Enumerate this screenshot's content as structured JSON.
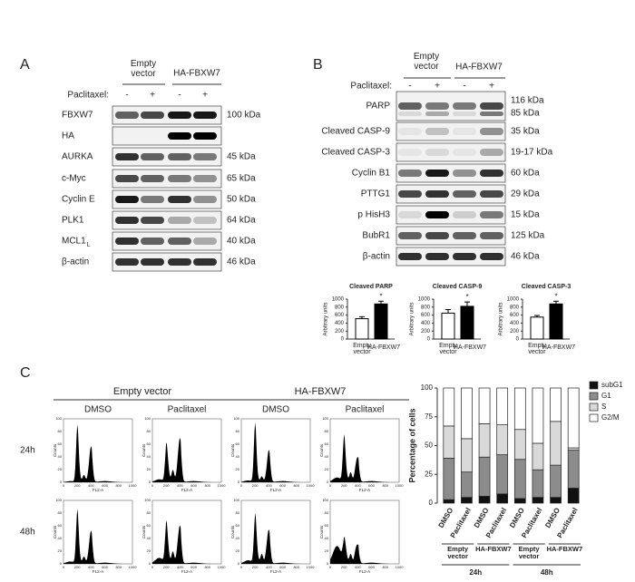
{
  "panel_a": {
    "label": "A",
    "groups": [
      "Empty vector",
      "HA-FBXW7"
    ],
    "treatment": "Paclitaxel:",
    "signs": [
      "-",
      "+",
      "-",
      "+"
    ],
    "rows": [
      {
        "protein": "FBXW7",
        "size": "100 kDa"
      },
      {
        "protein": "HA"
      },
      {
        "protein": "AURKA",
        "size": "45 kDa"
      },
      {
        "protein": "c-Myc",
        "size": "65 kDa"
      },
      {
        "protein": "Cyclin E",
        "size": "50 kDa"
      },
      {
        "protein": "PLK1",
        "size": "64 kDa"
      },
      {
        "protein": "MCL1",
        "subscript": "L",
        "size": "40 kDa"
      },
      {
        "protein": "β-actin",
        "size": "46 kDa"
      }
    ]
  },
  "panel_b": {
    "label": "B",
    "groups": [
      "Empty vector",
      "HA-FBXW7"
    ],
    "treatment": "Paclitaxel:",
    "signs": [
      "-",
      "+",
      "-",
      "+"
    ],
    "rows": [
      {
        "protein": "PARP",
        "size": "116 kDa",
        "size2": "85 kDa"
      },
      {
        "protein": "Cleaved CASP-9",
        "size": "35 kDa"
      },
      {
        "protein": "Cleaved CASP-3",
        "size": "19-17 kDa"
      },
      {
        "protein": "Cyclin B1",
        "size": "60 kDa"
      },
      {
        "protein": "PTTG1",
        "size": "29 kDa"
      },
      {
        "protein": "p HisH3",
        "size": "15 kDa"
      },
      {
        "protein": "BubR1",
        "size": "125 kDa"
      },
      {
        "protein": "β-actin",
        "size": "46 kDa"
      }
    ]
  },
  "panel_c": {
    "label": "C",
    "groups": [
      "Empty vector",
      "HA-FBXW7"
    ],
    "treatments": [
      "DMSO",
      "Paclitaxel"
    ],
    "periods": [
      "24h",
      "48h"
    ],
    "hist_x_label": "FL2-A",
    "hist_y_label": "Counts",
    "hist_xticks": [
      0,
      200,
      400,
      600,
      800,
      1000
    ],
    "hist_yticks": [
      0,
      20,
      40,
      60,
      80,
      100
    ]
  },
  "chart_data": [
    {
      "type": "bar",
      "title": "Cleaved PARP",
      "y_label": "Arbitrary units",
      "categories": [
        "Empty vector",
        "HA-FBXW7"
      ],
      "values": [
        510,
        880
      ],
      "errors": [
        50,
        70
      ],
      "colors": [
        "#ffffff",
        "#000000"
      ],
      "ylim": [
        0,
        1000
      ],
      "yticks": [
        0,
        200,
        400,
        600,
        800,
        1000
      ],
      "significance": "*"
    },
    {
      "type": "bar",
      "title": "Cleaved CASP-9",
      "y_label": "Arbitrary units",
      "categories": [
        "Empty vector",
        "HA-FBXW7"
      ],
      "values": [
        650,
        820
      ],
      "errors": [
        90,
        110
      ],
      "colors": [
        "#ffffff",
        "#000000"
      ],
      "ylim": [
        0,
        1000
      ],
      "yticks": [
        0,
        200,
        400,
        600,
        800,
        1000
      ],
      "significance": "*"
    },
    {
      "type": "bar",
      "title": "Cleaved CASP-3",
      "y_label": "Arbitrary units",
      "categories": [
        "Empty vector",
        "HA-FBXW7"
      ],
      "values": [
        550,
        880
      ],
      "errors": [
        40,
        70
      ],
      "colors": [
        "#ffffff",
        "#000000"
      ],
      "ylim": [
        0,
        1000
      ],
      "yticks": [
        0,
        200,
        400,
        600,
        800,
        1000
      ],
      "significance": "*"
    },
    {
      "type": "stacked_bar",
      "y_label": "Percentage of cells",
      "categories": [
        "DMSO",
        "Paclitaxel",
        "DMSO",
        "Paclitaxel",
        "DMSO",
        "Paclitaxel",
        "DMSO",
        "Paclitaxel"
      ],
      "groups": [
        "Empty vector",
        "HA-FBXW7",
        "Empty vector",
        "HA-FBXW7"
      ],
      "periods": [
        "24h",
        "48h"
      ],
      "series": [
        {
          "name": "subG1",
          "color": "#111111",
          "values": [
            3,
            5,
            6,
            8,
            4,
            5,
            5,
            13
          ]
        },
        {
          "name": "G1",
          "color": "#8c8c8c",
          "values": [
            36,
            22,
            34,
            34,
            34,
            24,
            28,
            33
          ]
        },
        {
          "name": "S",
          "color": "#d9d9d9",
          "values": [
            28,
            29,
            29,
            26,
            26,
            23,
            38,
            2
          ]
        },
        {
          "name": "G2/M",
          "color": "#ffffff",
          "values": [
            33,
            44,
            31,
            32,
            36,
            48,
            29,
            52
          ]
        }
      ],
      "ylim": [
        0,
        100
      ],
      "yticks": [
        0,
        25,
        50,
        75,
        100
      ],
      "legend": "right"
    }
  ]
}
